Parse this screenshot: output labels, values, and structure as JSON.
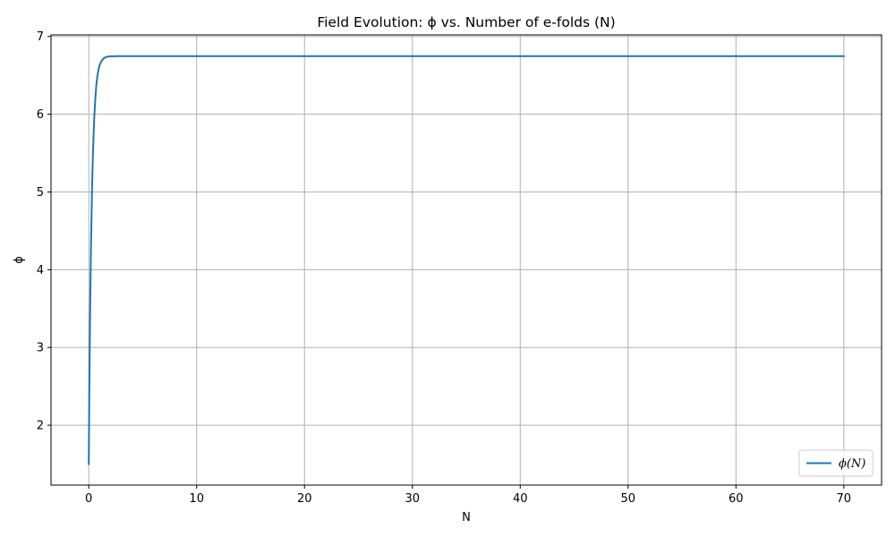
{
  "chart_data": {
    "type": "line",
    "title": "Field Evolution: ϕ vs. Number of e-folds (N)",
    "xlabel": "N",
    "ylabel": "ϕ",
    "xlim": [
      -3.5,
      73.5
    ],
    "ylim": [
      1.23,
      7.02
    ],
    "xticks": [
      0,
      10,
      20,
      30,
      40,
      50,
      60,
      70
    ],
    "yticks": [
      2,
      3,
      4,
      5,
      6,
      7
    ],
    "grid": true,
    "legend_position": "lower-right",
    "colors": {
      "series": "#1f77b4",
      "grid": "#b0b0b0"
    },
    "series": [
      {
        "name": "ϕ(N)",
        "x": [
          0,
          0.05,
          0.1,
          0.15,
          0.2,
          0.3,
          0.4,
          0.5,
          0.6,
          0.7,
          0.8,
          0.9,
          1.0,
          1.2,
          1.4,
          1.6,
          1.8,
          2.0,
          2.5,
          3.0,
          5,
          10,
          20,
          30,
          40,
          50,
          60,
          70
        ],
        "y": [
          1.5,
          2.39,
          3.13,
          3.74,
          4.25,
          5.02,
          5.56,
          5.93,
          6.19,
          6.37,
          6.49,
          6.57,
          6.63,
          6.69,
          6.72,
          6.735,
          6.742,
          6.745,
          6.746,
          6.746,
          6.746,
          6.746,
          6.746,
          6.746,
          6.746,
          6.746,
          6.746,
          6.746
        ]
      }
    ]
  }
}
